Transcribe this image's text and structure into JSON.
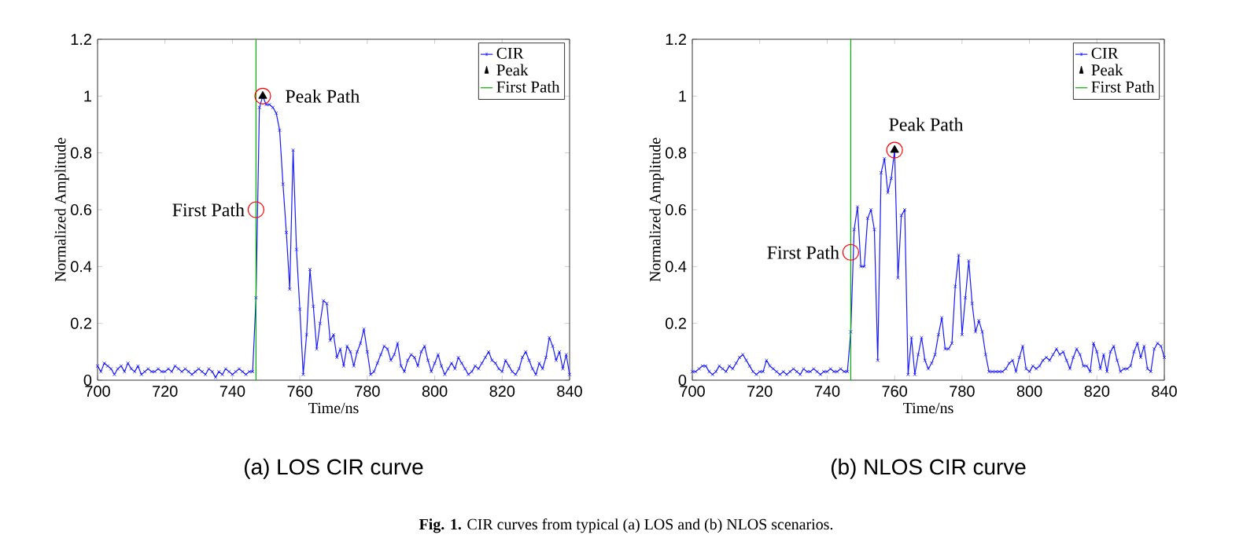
{
  "chart_data": [
    {
      "type": "line",
      "title": "(a) LOS CIR curve",
      "xlabel": "Time/ns",
      "ylabel": "Normalized Amplitude",
      "x": [
        700,
        701,
        702,
        703,
        704,
        705,
        706,
        707,
        708,
        709,
        710,
        711,
        712,
        713,
        714,
        715,
        716,
        717,
        718,
        719,
        720,
        721,
        722,
        723,
        724,
        725,
        726,
        727,
        728,
        729,
        730,
        731,
        732,
        733,
        734,
        735,
        736,
        737,
        738,
        739,
        740,
        741,
        742,
        743,
        744,
        745,
        746,
        747,
        748,
        749,
        750,
        751,
        752,
        753,
        754,
        755,
        756,
        757,
        758,
        759,
        760,
        761,
        762,
        763,
        764,
        765,
        766,
        767,
        768,
        769,
        770,
        771,
        772,
        773,
        774,
        775,
        776,
        777,
        778,
        779,
        780,
        781,
        782,
        783,
        784,
        785,
        786,
        787,
        788,
        789,
        790,
        791,
        792,
        793,
        794,
        795,
        796,
        797,
        798,
        799,
        800,
        801,
        802,
        803,
        804,
        805,
        806,
        807,
        808,
        809,
        810,
        811,
        812,
        813,
        814,
        815,
        816,
        817,
        818,
        819,
        820,
        821,
        822,
        823,
        824,
        825,
        826,
        827,
        828,
        829,
        830,
        831,
        832,
        833,
        834,
        835,
        836,
        837,
        838,
        839,
        840
      ],
      "series": [
        {
          "name": "CIR",
          "color": "#1a1aff",
          "marker": "cross",
          "values": [
            0.05,
            0.03,
            0.06,
            0.05,
            0.04,
            0.02,
            0.04,
            0.05,
            0.03,
            0.06,
            0.04,
            0.03,
            0.05,
            0.02,
            0.03,
            0.04,
            0.03,
            0.03,
            0.04,
            0.03,
            0.03,
            0.04,
            0.03,
            0.05,
            0.04,
            0.03,
            0.04,
            0.03,
            0.02,
            0.03,
            0.04,
            0.03,
            0.02,
            0.04,
            0.03,
            0.01,
            0.03,
            0.02,
            0.04,
            0.03,
            0.02,
            0.03,
            0.04,
            0.03,
            0.02,
            0.03,
            0.03,
            0.29,
            0.96,
            1.0,
            0.97,
            0.97,
            0.96,
            0.94,
            0.88,
            0.69,
            0.52,
            0.32,
            0.81,
            0.46,
            0.25,
            0.02,
            0.16,
            0.39,
            0.26,
            0.11,
            0.2,
            0.28,
            0.27,
            0.14,
            0.16,
            0.08,
            0.11,
            0.05,
            0.12,
            0.1,
            0.05,
            0.1,
            0.13,
            0.18,
            0.1,
            0.02,
            0.03,
            0.06,
            0.09,
            0.12,
            0.11,
            0.07,
            0.09,
            0.13,
            0.05,
            0.03,
            0.07,
            0.09,
            0.08,
            0.05,
            0.1,
            0.12,
            0.07,
            0.03,
            0.06,
            0.09,
            0.05,
            0.02,
            0.04,
            0.06,
            0.04,
            0.08,
            0.06,
            0.04,
            0.02,
            0.03,
            0.05,
            0.04,
            0.06,
            0.08,
            0.1,
            0.07,
            0.06,
            0.04,
            0.03,
            0.07,
            0.05,
            0.03,
            0.02,
            0.04,
            0.08,
            0.1,
            0.07,
            0.04,
            0.02,
            0.06,
            0.04,
            0.08,
            0.15,
            0.12,
            0.07,
            0.1,
            0.04,
            0.09,
            0.02
          ]
        },
        {
          "name": "Peak",
          "type": "scatter",
          "color": "#000000",
          "marker": "triangle",
          "x": [
            749
          ],
          "values": [
            1.0
          ]
        },
        {
          "name": "First Path",
          "type": "line",
          "color": "#00b000",
          "marker": "none",
          "x": [
            747,
            747
          ],
          "values": [
            0,
            1.2
          ]
        }
      ],
      "annotations": [
        {
          "text": "First Path",
          "x": 747,
          "y": 0.6
        },
        {
          "text": "Peak Path",
          "x": 749,
          "y": 1.0
        },
        "**Fig. 1.** CIR curves from typical (a) LOS and (b) NLOS scenarios."
      ],
      "xlim": [
        700,
        840
      ],
      "xticks": [
        700,
        720,
        740,
        760,
        780,
        800,
        820,
        840
      ],
      "ylim": [
        0,
        1.2
      ],
      "yticks": [
        0,
        0.2,
        0.4,
        0.6,
        0.8,
        1,
        1.2
      ],
      "grid": false,
      "legend": "top right"
    },
    {
      "type": "line",
      "title": "(b) NLOS CIR curve",
      "xlabel": "Time/ns",
      "ylabel": "Normalized Amplitude",
      "x": [
        700,
        701,
        702,
        703,
        704,
        705,
        706,
        707,
        708,
        709,
        710,
        711,
        712,
        713,
        714,
        715,
        716,
        717,
        718,
        719,
        720,
        721,
        722,
        723,
        724,
        725,
        726,
        727,
        728,
        729,
        730,
        731,
        732,
        733,
        734,
        735,
        736,
        737,
        738,
        739,
        740,
        741,
        742,
        743,
        744,
        745,
        746,
        747,
        748,
        749,
        750,
        751,
        752,
        753,
        754,
        755,
        756,
        757,
        758,
        759,
        760,
        761,
        762,
        763,
        764,
        765,
        766,
        767,
        768,
        769,
        770,
        771,
        772,
        773,
        774,
        775,
        776,
        777,
        778,
        779,
        780,
        781,
        782,
        783,
        784,
        785,
        786,
        787,
        788,
        789,
        790,
        791,
        792,
        793,
        794,
        795,
        796,
        797,
        798,
        799,
        800,
        801,
        802,
        803,
        804,
        805,
        806,
        807,
        808,
        809,
        810,
        811,
        812,
        813,
        814,
        815,
        816,
        817,
        818,
        819,
        820,
        821,
        822,
        823,
        824,
        825,
        826,
        827,
        828,
        829,
        830,
        831,
        832,
        833,
        834,
        835,
        836,
        837,
        838,
        839,
        840
      ],
      "series": [
        {
          "name": "CIR",
          "color": "#1a1aff",
          "marker": "cross",
          "values": [
            0.03,
            0.03,
            0.04,
            0.05,
            0.05,
            0.03,
            0.02,
            0.03,
            0.05,
            0.04,
            0.03,
            0.05,
            0.04,
            0.06,
            0.08,
            0.09,
            0.07,
            0.05,
            0.03,
            0.02,
            0.03,
            0.03,
            0.07,
            0.05,
            0.04,
            0.03,
            0.02,
            0.03,
            0.02,
            0.03,
            0.04,
            0.03,
            0.02,
            0.04,
            0.03,
            0.03,
            0.04,
            0.03,
            0.02,
            0.03,
            0.03,
            0.04,
            0.03,
            0.03,
            0.04,
            0.03,
            0.03,
            0.17,
            0.53,
            0.61,
            0.4,
            0.4,
            0.57,
            0.6,
            0.53,
            0.07,
            0.73,
            0.78,
            0.66,
            0.71,
            0.81,
            0.36,
            0.58,
            0.6,
            0.02,
            0.15,
            0.02,
            0.09,
            0.15,
            0.07,
            0.04,
            0.06,
            0.09,
            0.16,
            0.22,
            0.11,
            0.11,
            0.13,
            0.33,
            0.44,
            0.16,
            0.29,
            0.42,
            0.27,
            0.17,
            0.21,
            0.17,
            0.09,
            0.03,
            0.03,
            0.03,
            0.03,
            0.03,
            0.04,
            0.06,
            0.07,
            0.03,
            0.08,
            0.12,
            0.04,
            0.03,
            0.05,
            0.04,
            0.05,
            0.07,
            0.08,
            0.07,
            0.09,
            0.11,
            0.09,
            0.1,
            0.07,
            0.04,
            0.08,
            0.11,
            0.09,
            0.05,
            0.05,
            0.03,
            0.13,
            0.1,
            0.04,
            0.09,
            0.03,
            0.1,
            0.12,
            0.07,
            0.03,
            0.04,
            0.04,
            0.05,
            0.1,
            0.13,
            0.08,
            0.12,
            0.04,
            0.03,
            0.11,
            0.13,
            0.12,
            0.08
          ]
        },
        {
          "name": "Peak",
          "type": "scatter",
          "color": "#000000",
          "marker": "triangle",
          "x": [
            760
          ],
          "values": [
            0.81
          ]
        },
        {
          "name": "First Path",
          "type": "line",
          "color": "#00b000",
          "marker": "none",
          "x": [
            747,
            747
          ],
          "values": [
            0,
            1.2
          ]
        }
      ],
      "annotations": [
        {
          "text": "First Path",
          "x": 747,
          "y": 0.45
        },
        {
          "text": "Peak Path",
          "x": 760,
          "y": 0.81
        }
      ],
      "xlim": [
        700,
        840
      ],
      "xticks": [
        700,
        720,
        740,
        760,
        780,
        800,
        820,
        840
      ],
      "ylim": [
        0,
        1.2
      ],
      "yticks": [
        0,
        0.2,
        0.4,
        0.6,
        0.8,
        1,
        1.2
      ],
      "grid": false,
      "legend": "top right"
    }
  ]
}
